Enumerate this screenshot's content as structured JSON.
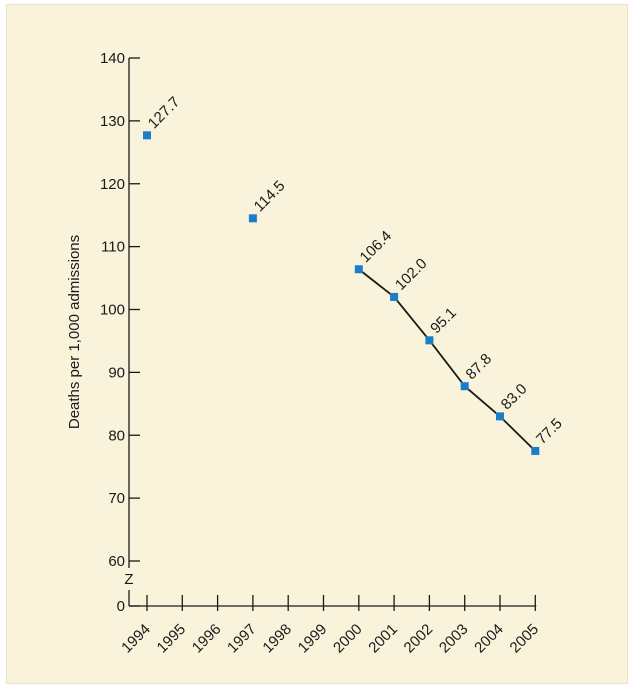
{
  "chart_data": {
    "type": "line",
    "title": "",
    "xlabel": "",
    "ylabel": "Deaths per 1,000 admissions",
    "categories": [
      "1994",
      "1995",
      "1996",
      "1997",
      "1998",
      "1999",
      "2000",
      "2001",
      "2002",
      "2003",
      "2004",
      "2005"
    ],
    "y_ticks": [
      "140",
      "130",
      "120",
      "110",
      "100",
      "90",
      "80",
      "70",
      "60",
      "0"
    ],
    "axis_break_marker": "Z",
    "ylim": [
      0,
      140
    ],
    "broken_axis": true,
    "series": [
      {
        "points": [
          {
            "x": "1994",
            "y": 127.7,
            "label": "127.7",
            "connected": false
          },
          {
            "x": "1997",
            "y": 114.5,
            "label": "114.5",
            "connected": false
          },
          {
            "x": "2000",
            "y": 106.4,
            "label": "106.4",
            "connected": true
          },
          {
            "x": "2001",
            "y": 102.0,
            "label": "102.0",
            "connected": true
          },
          {
            "x": "2002",
            "y": 95.1,
            "label": "95.1",
            "connected": true
          },
          {
            "x": "2003",
            "y": 87.8,
            "label": "87.8",
            "connected": true
          },
          {
            "x": "2004",
            "y": 83.0,
            "label": "83.0",
            "connected": true
          },
          {
            "x": "2005",
            "y": 77.5,
            "label": "77.5",
            "connected": true
          }
        ]
      }
    ],
    "colors": {
      "marker": "#1a7ec8",
      "line": "#1a1a1a",
      "background": "#f8f3da"
    },
    "grid": false,
    "legend": "none"
  }
}
